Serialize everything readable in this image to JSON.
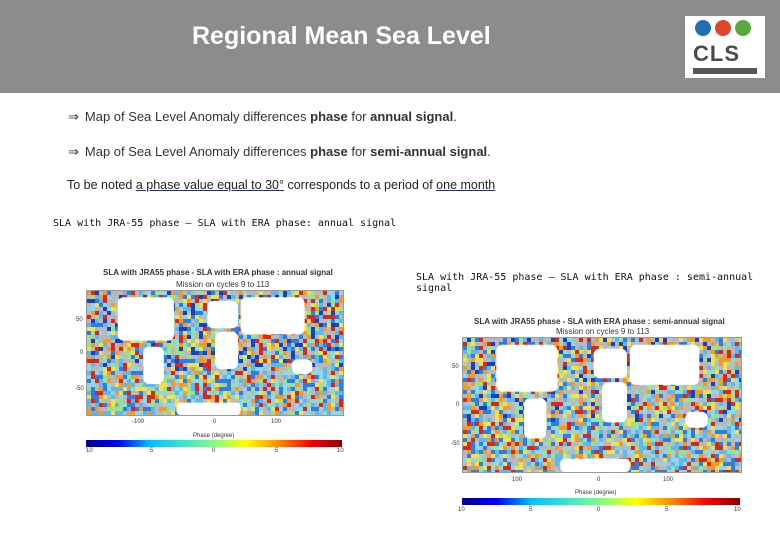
{
  "header": {
    "title": "Regional Mean Sea Level"
  },
  "logo": {
    "text": "CLS",
    "colors": [
      "#1f6fb2",
      "#e0452b",
      "#5aa83a"
    ]
  },
  "bullets": [
    {
      "arrow": "⇒",
      "pre": "Map of Sea Level Anomaly differences ",
      "bold1": "phase",
      "mid": " for ",
      "bold2": "annual signal",
      "post": "."
    },
    {
      "arrow": "⇒",
      "pre": "Map of Sea Level Anomaly differences ",
      "bold1": "phase",
      "mid": " for ",
      "bold2": "semi-annual signal",
      "post": "."
    }
  ],
  "note": {
    "pre": "To be noted ",
    "u1": "a phase value equal to 30°",
    "mid": " corresponds to a period of ",
    "u2": "one month"
  },
  "captions": {
    "annual": "SLA with JRA-55 phase – SLA with ERA phase:  annual signal",
    "semi": "SLA with JRA-55 phase – SLA with ERA phase :  semi-annual signal"
  },
  "maps": {
    "annual": {
      "title": "SLA with JRA55 phase - SLA with ERA phase : annual signal",
      "subtitle": "Mission on cycles 9 to 113",
      "yticks": [
        "50",
        "0",
        "-50"
      ],
      "xticks": [
        "-100",
        "0",
        "100"
      ],
      "cbar_label": "Phase (degree)",
      "cbar_ticks": [
        "10",
        "5",
        "0",
        "5",
        "10"
      ]
    },
    "semi": {
      "title": "SLA with JRA55 phase - SLA with ERA phase : semi-annual signal",
      "subtitle": "Mission on cycles 9 to 113",
      "yticks": [
        "50",
        "0",
        "-50"
      ],
      "xticks": [
        "100",
        "0",
        "100"
      ],
      "cbar_label": "Phase (degree)",
      "cbar_ticks": [
        "10",
        "5",
        "0",
        "5",
        "10"
      ]
    }
  }
}
